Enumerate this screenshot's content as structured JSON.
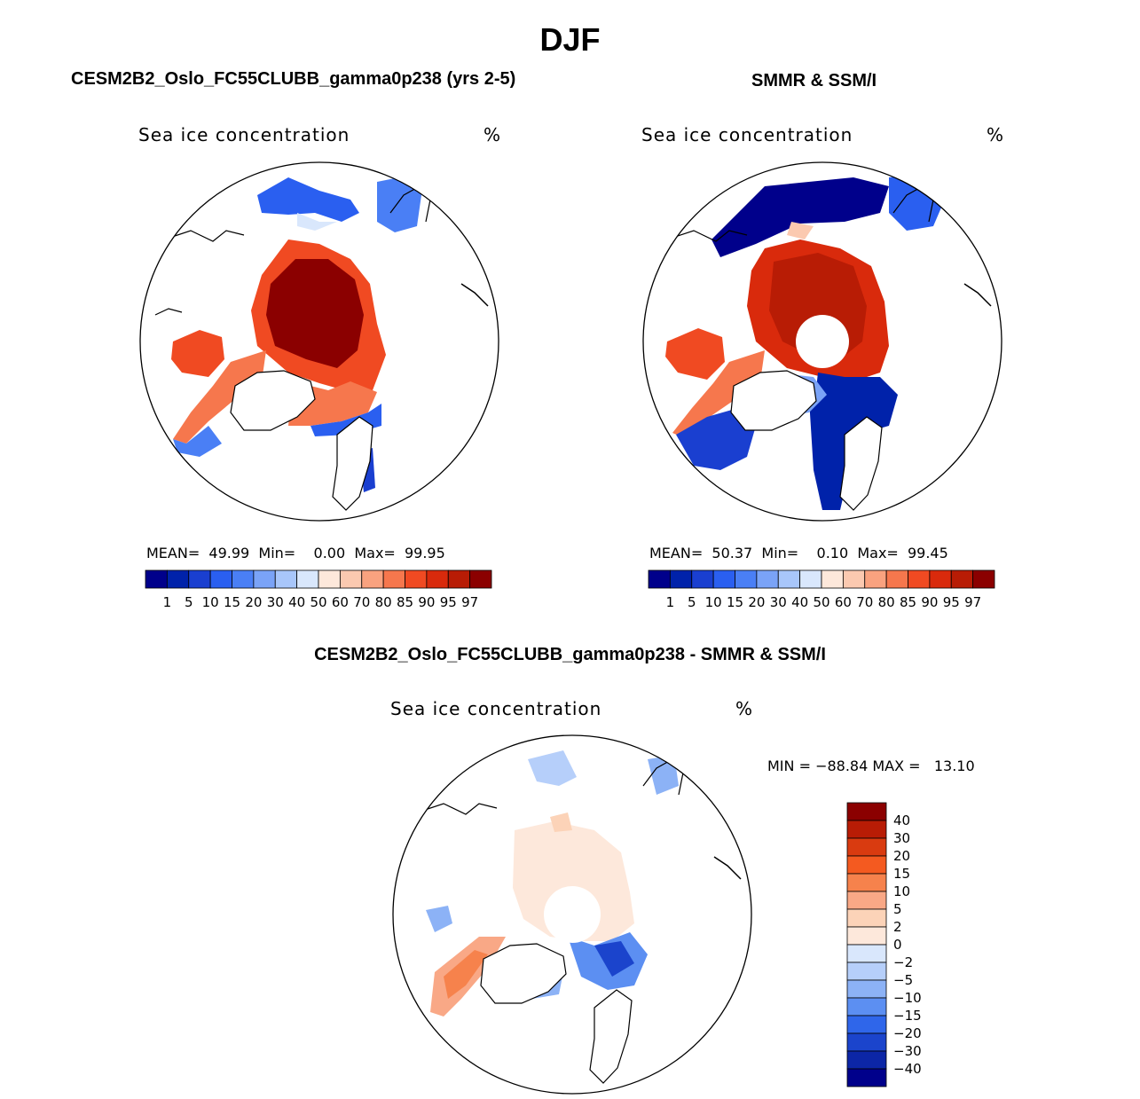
{
  "figure": {
    "title": "DJF"
  },
  "panels": [
    {
      "title": "CESM2B2_Oslo_FC55CLUBB_gamma0p238 (yrs 2-5)",
      "variable": "Sea ice concentration",
      "units": "%",
      "stats": {
        "mean_label": "MEAN=",
        "mean_value": "49.99",
        "min_label": "Min=",
        "min_value": "0.00",
        "max_label": "Max=",
        "max_value": "99.95"
      },
      "pole_hole": false
    },
    {
      "title": "SMMR & SSM/I",
      "variable": "Sea ice concentration",
      "units": "%",
      "stats": {
        "mean_label": "MEAN=",
        "mean_value": "50.37",
        "min_label": "Min=",
        "min_value": "0.10",
        "max_label": "Max=",
        "max_value": "99.45"
      },
      "pole_hole": true
    }
  ],
  "abs_colorbar": {
    "colors": [
      "#00008b",
      "#0022aa",
      "#1a3fd0",
      "#2a5ff0",
      "#4a7ff5",
      "#7aa3f7",
      "#a8c6fa",
      "#d9e7fc",
      "#fde8db",
      "#fbc9b0",
      "#f9a27f",
      "#f6774d",
      "#f04a22",
      "#d92a0c",
      "#b81c05",
      "#8b0000"
    ],
    "ticks": [
      "1",
      "5",
      "10",
      "15",
      "20",
      "30",
      "40",
      "50",
      "60",
      "70",
      "80",
      "85",
      "90",
      "95",
      "97"
    ]
  },
  "diff_panel": {
    "title": "CESM2B2_Oslo_FC55CLUBB_gamma0p238 - SMMR & SSM/I",
    "variable": "Sea ice concentration",
    "units": "%",
    "stats_text": "MIN = −88.84 MAX =   13.10",
    "colorbar": {
      "colors": [
        "#8b0000",
        "#b81c05",
        "#d93b10",
        "#f45a20",
        "#f6824c",
        "#f9a886",
        "#fcd3b8",
        "#fde8db",
        "#d9e7fc",
        "#b6cffa",
        "#8cb2f6",
        "#5c8ff2",
        "#2f66ea",
        "#1b44cc",
        "#0c26a6",
        "#00008b"
      ],
      "ticks": [
        "40",
        "30",
        "20",
        "15",
        "10",
        "5",
        "2",
        "0",
        "−2",
        "−5",
        "−10",
        "−15",
        "−20",
        "−30",
        "−40"
      ]
    }
  },
  "chart_data": {
    "type": "heatmap",
    "title": "DJF",
    "description_units": "%",
    "panels": [
      {
        "name": "CESM2B2_Oslo_FC55CLUBB_gamma0p238 (yrs 2-5)",
        "mean": 49.99,
        "min": 0.0,
        "max": 99.95
      },
      {
        "name": "SMMR & SSM/I",
        "mean": 50.37,
        "min": 0.1,
        "max": 99.45
      },
      {
        "name": "CESM2B2_Oslo_FC55CLUBB_gamma0p238 - SMMR & SSM/I",
        "min": -88.84,
        "max": 13.1
      }
    ],
    "abs_levels": [
      1,
      5,
      10,
      15,
      20,
      30,
      40,
      50,
      60,
      70,
      80,
      85,
      90,
      95,
      97
    ],
    "diff_levels": [
      40,
      30,
      20,
      15,
      10,
      5,
      2,
      0,
      -2,
      -5,
      -10,
      -15,
      -20,
      -30,
      -40
    ]
  }
}
